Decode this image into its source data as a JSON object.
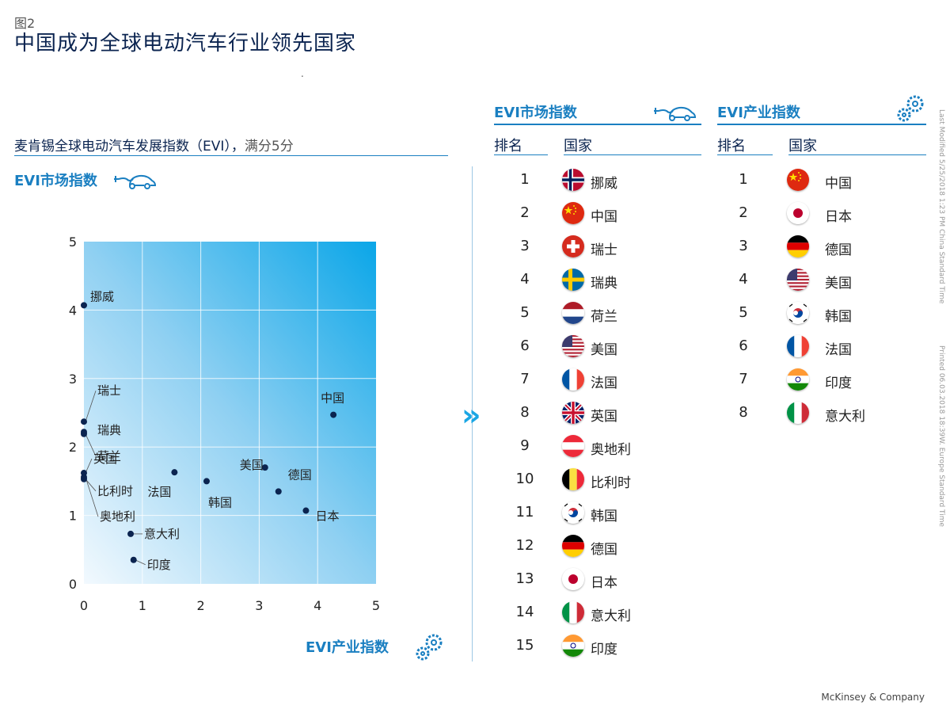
{
  "figure_label": "图2",
  "title": "中国成为全球电动汽车行业领先国家",
  "subtitle": {
    "main": "麦肯锡全球电动汽车发展指数（EVI），",
    "score": "满分5分"
  },
  "market_label": "EVI市场指数",
  "industry_label": "EVI产业指数",
  "market_table": {
    "title": "EVI市场指数",
    "rank_header": "排名",
    "country_header": "国家",
    "rows": [
      {
        "rank": "1",
        "country": "挪威",
        "flag": "norway"
      },
      {
        "rank": "2",
        "country": "中国",
        "flag": "china"
      },
      {
        "rank": "3",
        "country": "瑞士",
        "flag": "switzerland"
      },
      {
        "rank": "4",
        "country": "瑞典",
        "flag": "sweden"
      },
      {
        "rank": "5",
        "country": "荷兰",
        "flag": "netherlands"
      },
      {
        "rank": "6",
        "country": "美国",
        "flag": "usa"
      },
      {
        "rank": "7",
        "country": "法国",
        "flag": "france"
      },
      {
        "rank": "8",
        "country": "英国",
        "flag": "uk"
      },
      {
        "rank": "9",
        "country": "奥地利",
        "flag": "austria"
      },
      {
        "rank": "10",
        "country": "比利时",
        "flag": "belgium"
      },
      {
        "rank": "11",
        "country": "韩国",
        "flag": "korea"
      },
      {
        "rank": "12",
        "country": "德国",
        "flag": "germany"
      },
      {
        "rank": "13",
        "country": "日本",
        "flag": "japan"
      },
      {
        "rank": "14",
        "country": "意大利",
        "flag": "italy"
      },
      {
        "rank": "15",
        "country": "印度",
        "flag": "india"
      }
    ]
  },
  "industry_table": {
    "title": "EVI产业指数",
    "rank_header": "排名",
    "country_header": "国家",
    "rows": [
      {
        "rank": "1",
        "country": "中国",
        "flag": "china"
      },
      {
        "rank": "2",
        "country": "日本",
        "flag": "japan"
      },
      {
        "rank": "3",
        "country": "德国",
        "flag": "germany"
      },
      {
        "rank": "4",
        "country": "美国",
        "flag": "usa"
      },
      {
        "rank": "5",
        "country": "韩国",
        "flag": "korea"
      },
      {
        "rank": "6",
        "country": "法国",
        "flag": "france"
      },
      {
        "rank": "7",
        "country": "印度",
        "flag": "india"
      },
      {
        "rank": "8",
        "country": "意大利",
        "flag": "italy"
      }
    ]
  },
  "side_note_1": "Last Modified 5/25/2018 1:23 PM China Standard Time",
  "side_note_2": "Printed 06.03.2018 18:39W. Europe Standard Time",
  "footer": "McKinsey & Company",
  "colors": {
    "accent": "#1a7fc1",
    "navy": "#0b2450",
    "dot": "#0b2450"
  },
  "chart_data": {
    "type": "scatter",
    "xlabel": "EVI产业指数",
    "ylabel": "EVI市场指数",
    "xlim": [
      0,
      5
    ],
    "ylim": [
      0,
      5
    ],
    "xticks": [
      "0",
      "1",
      "2",
      "3",
      "4",
      "5"
    ],
    "yticks": [
      "0",
      "1",
      "2",
      "3",
      "4",
      "5"
    ],
    "grid": true,
    "points": [
      {
        "label": "挪威",
        "x": 0.0,
        "y": 4.07
      },
      {
        "label": "瑞士",
        "x": 0.0,
        "y": 2.37
      },
      {
        "label": "瑞典",
        "x": 0.0,
        "y": 2.22
      },
      {
        "label": "荷兰",
        "x": 0.0,
        "y": 2.19
      },
      {
        "label": "英国",
        "x": 0.0,
        "y": 1.62
      },
      {
        "label": "比利时",
        "x": 0.0,
        "y": 1.53
      },
      {
        "label": "奥地利",
        "x": 0.0,
        "y": 1.56
      },
      {
        "label": "意大利",
        "x": 0.8,
        "y": 0.73
      },
      {
        "label": "印度",
        "x": 0.85,
        "y": 0.35
      },
      {
        "label": "法国",
        "x": 1.55,
        "y": 1.63
      },
      {
        "label": "韩国",
        "x": 2.1,
        "y": 1.5
      },
      {
        "label": "美国",
        "x": 3.1,
        "y": 1.7
      },
      {
        "label": "德国",
        "x": 3.33,
        "y": 1.35
      },
      {
        "label": "日本",
        "x": 3.8,
        "y": 1.07
      },
      {
        "label": "中国",
        "x": 4.27,
        "y": 2.47
      }
    ]
  }
}
